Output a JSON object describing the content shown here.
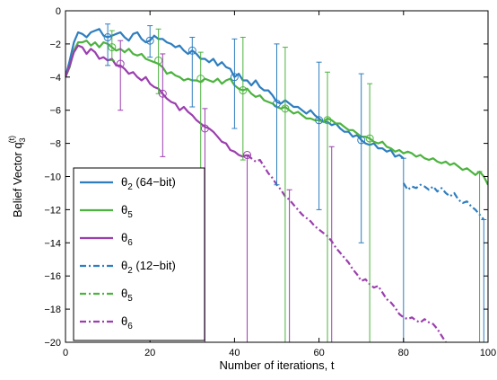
{
  "chart_data": {
    "type": "line",
    "xlabel": "Number of iterations, t",
    "ylabel_main": "Belief Vector q",
    "ylabel_sub": "3",
    "ylabel_sup": "(t)",
    "xlim": [
      0,
      100
    ],
    "ylim": [
      -20,
      0
    ],
    "xticks": [
      0,
      20,
      40,
      60,
      80,
      100
    ],
    "yticks": [
      0,
      -2,
      -4,
      -6,
      -8,
      -10,
      -12,
      -14,
      -16,
      -18,
      -20
    ],
    "grid": false,
    "legend_position": "bottom-left",
    "colors": {
      "blue": "#2f7ebf",
      "green": "#4db340",
      "purple": "#9b3fae"
    },
    "series": [
      {
        "name": "θ2 (64-bit)",
        "sym": "θ",
        "sub": "2",
        "suffix": " (64−bit)",
        "color": "#2f7ebf",
        "dash": "solid",
        "x": [
          0,
          1,
          2,
          3,
          4,
          5,
          6,
          7,
          8,
          9,
          10,
          11,
          12,
          13,
          14,
          15,
          16,
          17,
          18,
          19,
          20,
          21,
          22,
          23,
          24,
          25,
          26,
          27,
          28,
          29,
          30,
          31,
          32,
          33,
          34,
          35,
          36,
          37,
          38,
          39,
          40,
          41,
          42,
          43,
          44,
          45,
          46,
          47,
          48,
          49,
          50,
          51,
          52,
          53,
          54,
          55,
          56,
          57,
          58,
          59,
          60,
          61,
          62,
          63,
          64,
          65,
          66,
          67,
          68,
          69,
          70,
          71,
          72,
          73,
          74,
          75,
          76,
          77,
          78,
          79,
          80
        ],
        "y": [
          -4.0,
          -3.0,
          -1.9,
          -1.3,
          -1.4,
          -1.6,
          -1.3,
          -1.2,
          -1.1,
          -1.5,
          -1.6,
          -1.5,
          -1.4,
          -1.3,
          -1.6,
          -1.8,
          -1.4,
          -1.3,
          -1.7,
          -1.9,
          -1.8,
          -1.5,
          -1.7,
          -1.7,
          -1.9,
          -2.0,
          -2.2,
          -2.1,
          -2.4,
          -2.6,
          -2.4,
          -2.6,
          -2.9,
          -2.9,
          -3.1,
          -2.9,
          -3.3,
          -3.1,
          -3.4,
          -3.5,
          -4.0,
          -3.8,
          -4.2,
          -4.2,
          -4.5,
          -4.2,
          -4.6,
          -4.8,
          -4.8,
          -5.1,
          -5.5,
          -5.6,
          -5.4,
          -5.6,
          -5.8,
          -5.8,
          -6.0,
          -6.2,
          -6.0,
          -6.3,
          -6.5,
          -6.7,
          -6.7,
          -6.9,
          -6.8,
          -7.1,
          -7.3,
          -7.3,
          -7.6,
          -7.5,
          -7.8,
          -8.0,
          -8.1,
          -8.0,
          -8.3,
          -8.3,
          -8.5,
          -8.4,
          -8.8,
          -8.7,
          -8.9
        ]
      },
      {
        "name": "θ5",
        "sym": "θ",
        "sub": "5",
        "suffix": "",
        "color": "#4db340",
        "dash": "solid",
        "x": [
          0,
          1,
          2,
          3,
          4,
          5,
          6,
          7,
          8,
          9,
          10,
          11,
          12,
          13,
          14,
          15,
          16,
          17,
          18,
          19,
          20,
          21,
          22,
          23,
          24,
          25,
          26,
          27,
          28,
          29,
          30,
          31,
          32,
          33,
          34,
          35,
          36,
          37,
          38,
          39,
          40,
          41,
          42,
          43,
          44,
          45,
          46,
          47,
          48,
          49,
          50,
          51,
          52,
          53,
          54,
          55,
          56,
          57,
          58,
          59,
          60,
          61,
          62,
          63,
          64,
          65,
          66,
          67,
          68,
          69,
          70,
          71,
          72,
          73,
          74,
          75,
          76,
          77,
          78,
          79,
          80,
          81,
          82,
          83,
          84,
          85,
          86,
          87,
          88,
          89,
          90,
          91,
          92,
          93,
          94,
          95,
          96,
          97,
          98,
          99,
          100
        ],
        "y": [
          -4.0,
          -3.4,
          -2.4,
          -1.9,
          -1.9,
          -1.8,
          -2.1,
          -1.9,
          -2.2,
          -1.9,
          -2.0,
          -2.2,
          -2.4,
          -2.3,
          -2.5,
          -2.3,
          -2.6,
          -2.7,
          -2.6,
          -2.9,
          -3.0,
          -3.1,
          -3.2,
          -3.4,
          -3.8,
          -3.7,
          -3.9,
          -4.0,
          -4.2,
          -4.1,
          -4.2,
          -4.2,
          -4.3,
          -4.1,
          -4.2,
          -4.3,
          -4.1,
          -4.4,
          -4.2,
          -4.1,
          -4.5,
          -4.7,
          -4.8,
          -4.7,
          -5.0,
          -5.2,
          -5.1,
          -5.4,
          -5.5,
          -5.6,
          -5.8,
          -5.9,
          -5.8,
          -6.0,
          -6.2,
          -6.1,
          -6.3,
          -6.5,
          -6.5,
          -6.6,
          -6.6,
          -6.7,
          -6.5,
          -6.6,
          -6.8,
          -6.8,
          -7.0,
          -7.2,
          -7.2,
          -7.4,
          -7.6,
          -7.6,
          -7.7,
          -7.9,
          -8.0,
          -7.9,
          -8.2,
          -8.3,
          -8.5,
          -8.4,
          -8.6,
          -8.5,
          -8.6,
          -8.8,
          -8.7,
          -8.9,
          -9.0,
          -8.9,
          -9.1,
          -9.2,
          -9.1,
          -9.3,
          -9.2,
          -9.4,
          -9.6,
          -9.5,
          -9.7,
          -9.9,
          -9.7,
          -10.0,
          -10.5
        ]
      },
      {
        "name": "θ6",
        "sym": "θ",
        "sub": "6",
        "suffix": "",
        "color": "#9b3fae",
        "dash": "solid",
        "x": [
          0,
          1,
          2,
          3,
          4,
          5,
          6,
          7,
          8,
          9,
          10,
          11,
          12,
          13,
          14,
          15,
          16,
          17,
          18,
          19,
          20,
          21,
          22,
          23,
          24,
          25,
          26,
          27,
          28,
          29,
          30,
          31,
          32,
          33,
          34,
          35,
          36,
          37,
          38,
          39,
          40,
          41,
          42,
          43
        ],
        "y": [
          -4.0,
          -3.3,
          -2.5,
          -2.1,
          -2.2,
          -2.6,
          -2.3,
          -2.5,
          -2.9,
          -2.8,
          -3.0,
          -2.9,
          -3.3,
          -3.3,
          -3.5,
          -3.8,
          -3.7,
          -4.0,
          -4.2,
          -4.0,
          -4.4,
          -4.6,
          -4.7,
          -5.0,
          -5.3,
          -5.5,
          -5.6,
          -6.0,
          -5.8,
          -6.1,
          -6.3,
          -6.6,
          -6.8,
          -7.0,
          -7.1,
          -7.3,
          -7.6,
          -7.9,
          -8.0,
          -8.4,
          -8.5,
          -8.7,
          -8.8,
          -8.7
        ]
      },
      {
        "name": "θ2 (12-bit)",
        "sym": "θ",
        "sub": "2",
        "suffix": " (12−bit)",
        "color": "#2f7ebf",
        "dash": "dashdot",
        "x": [
          80,
          81,
          82,
          83,
          84,
          85,
          86,
          87,
          88,
          89,
          90,
          91,
          92,
          93,
          94,
          95,
          96,
          97,
          98,
          99
        ],
        "y": [
          -10.4,
          -10.8,
          -10.6,
          -10.7,
          -10.5,
          -10.6,
          -10.8,
          -10.6,
          -10.9,
          -10.7,
          -11.0,
          -11.2,
          -11.0,
          -11.4,
          -11.6,
          -11.5,
          -11.8,
          -12.0,
          -12.3,
          -12.6
        ]
      },
      {
        "name": "θ5",
        "sym": "θ",
        "sub": "5",
        "suffix": "",
        "color": "#4db340",
        "dash": "dashdot",
        "x": [],
        "y": []
      },
      {
        "name": "θ6",
        "sym": "θ",
        "sub": "6",
        "suffix": "",
        "color": "#9b3fae",
        "dash": "dashdot",
        "x": [
          43,
          44,
          45,
          46,
          47,
          48,
          49,
          50,
          51,
          52,
          53,
          54,
          55,
          56,
          57,
          58,
          59,
          60,
          61,
          62,
          63,
          64,
          65,
          66,
          67,
          68,
          69,
          70,
          71,
          72,
          73,
          74,
          75,
          76,
          77,
          78,
          79,
          80,
          81,
          82,
          83,
          84,
          85,
          86,
          87,
          88,
          89,
          90
        ],
        "y": [
          -8.7,
          -8.9,
          -9.1,
          -9.0,
          -9.4,
          -9.8,
          -10.1,
          -10.5,
          -10.8,
          -11.2,
          -11.4,
          -11.7,
          -12.0,
          -12.3,
          -12.5,
          -12.7,
          -13.0,
          -13.2,
          -13.4,
          -13.6,
          -13.9,
          -14.3,
          -14.6,
          -14.9,
          -15.2,
          -15.6,
          -15.9,
          -16.3,
          -16.2,
          -16.5,
          -16.7,
          -16.6,
          -17.0,
          -17.4,
          -17.6,
          -17.9,
          -18.3,
          -18.5,
          -18.6,
          -18.5,
          -18.7,
          -18.8,
          -18.6,
          -18.8,
          -18.9,
          -19.2,
          -19.6,
          -20.0
        ]
      }
    ],
    "markers": [
      {
        "color": "#2f7ebf",
        "x": 10,
        "y": -1.6
      },
      {
        "color": "#2f7ebf",
        "x": 20,
        "y": -1.8
      },
      {
        "color": "#2f7ebf",
        "x": 30,
        "y": -2.4
      },
      {
        "color": "#2f7ebf",
        "x": 40,
        "y": -4.0
      },
      {
        "color": "#2f7ebf",
        "x": 50,
        "y": -5.6
      },
      {
        "color": "#2f7ebf",
        "x": 60,
        "y": -6.6
      },
      {
        "color": "#2f7ebf",
        "x": 70,
        "y": -7.8
      },
      {
        "color": "#4db340",
        "x": 11,
        "y": -2.2
      },
      {
        "color": "#4db340",
        "x": 22,
        "y": -3.0
      },
      {
        "color": "#4db340",
        "x": 32,
        "y": -4.1
      },
      {
        "color": "#4db340",
        "x": 42,
        "y": -4.8
      },
      {
        "color": "#4db340",
        "x": 52,
        "y": -5.9
      },
      {
        "color": "#4db340",
        "x": 62,
        "y": -6.6
      },
      {
        "color": "#4db340",
        "x": 72,
        "y": -7.7
      },
      {
        "color": "#9b3fae",
        "x": 13,
        "y": -3.2
      },
      {
        "color": "#9b3fae",
        "x": 23,
        "y": -5.0
      },
      {
        "color": "#9b3fae",
        "x": 33,
        "y": -7.1
      },
      {
        "color": "#9b3fae",
        "x": 43,
        "y": -8.7
      }
    ],
    "error_bars": [
      {
        "color": "#2f7ebf",
        "x": 10,
        "low": -3.3,
        "high": -0.8
      },
      {
        "color": "#2f7ebf",
        "x": 20,
        "low": -2.8,
        "high": -0.9
      },
      {
        "color": "#2f7ebf",
        "x": 30,
        "low": -5.8,
        "high": -1.6
      },
      {
        "color": "#2f7ebf",
        "x": 40,
        "low": -7.1,
        "high": -1.7
      },
      {
        "color": "#2f7ebf",
        "x": 50,
        "low": -10.5,
        "high": -2.0
      },
      {
        "color": "#2f7ebf",
        "x": 60,
        "low": -12.0,
        "high": -3.1
      },
      {
        "color": "#2f7ebf",
        "x": 70,
        "low": -14.0,
        "high": -3.8
      },
      {
        "color": "#2f7ebf",
        "x": 80,
        "low": -20.0,
        "high": -8.9
      },
      {
        "color": "#2f7ebf",
        "x": 99,
        "low": -20.0,
        "high": -12.6
      },
      {
        "color": "#4db340",
        "x": 11,
        "low": -3.0,
        "high": -1.2
      },
      {
        "color": "#4db340",
        "x": 22,
        "low": -5.0,
        "high": -1.1
      },
      {
        "color": "#4db340",
        "x": 32,
        "low": -9.5,
        "high": -2.5
      },
      {
        "color": "#4db340",
        "x": 42,
        "low": -9.0,
        "high": -1.6
      },
      {
        "color": "#4db340",
        "x": 52,
        "low": -20.0,
        "high": -2.2
      },
      {
        "color": "#4db340",
        "x": 62,
        "low": -20.0,
        "high": -3.7
      },
      {
        "color": "#4db340",
        "x": 72,
        "low": -20.0,
        "high": -4.4
      },
      {
        "color": "#4db340",
        "x": 98,
        "low": -20.0,
        "high": -9.7
      },
      {
        "color": "#9b3fae",
        "x": 13,
        "low": -6.0,
        "high": -1.8
      },
      {
        "color": "#9b3fae",
        "x": 23,
        "low": -8.8,
        "high": -2.6
      },
      {
        "color": "#9b3fae",
        "x": 33,
        "low": -20.0,
        "high": -5.9
      },
      {
        "color": "#9b3fae",
        "x": 43,
        "low": -20.0,
        "high": -8.7
      },
      {
        "color": "#9b3fae",
        "x": 53,
        "low": -20.0,
        "high": -10.8
      },
      {
        "color": "#9b3fae",
        "x": 63,
        "low": -20.0,
        "high": -8.2
      }
    ]
  }
}
